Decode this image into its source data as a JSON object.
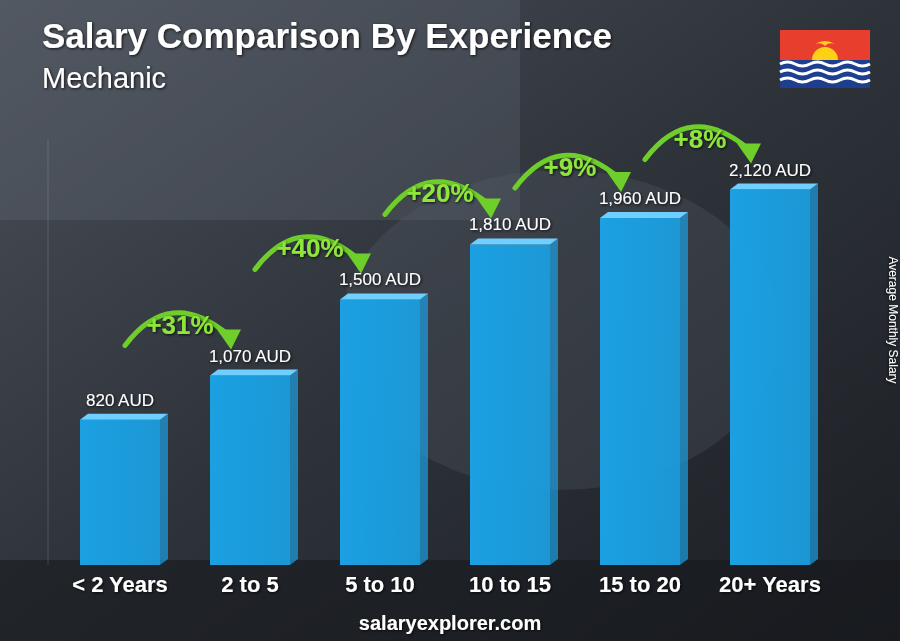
{
  "chart_data": {
    "type": "bar",
    "title": "Salary Comparison By Experience",
    "subtitle": "Mechanic",
    "categories": [
      "< 2 Years",
      "2 to 5",
      "5 to 10",
      "10 to 15",
      "15 to 20",
      "20+ Years"
    ],
    "values": [
      820,
      1070,
      1500,
      1810,
      1960,
      2120
    ],
    "value_labels": [
      "820 AUD",
      "1,070 AUD",
      "1,500 AUD",
      "1,810 AUD",
      "1,960 AUD",
      "2,120 AUD"
    ],
    "annotations": [
      "+31%",
      "+40%",
      "+20%",
      "+9%",
      "+8%"
    ],
    "y_label": "Average Monthly Salary",
    "source": "salaryexplorer.com",
    "color": "#1ba0e2",
    "ylim": [
      0,
      2400
    ],
    "data_labels": true,
    "tick_labels": "x",
    "grid": false
  }
}
